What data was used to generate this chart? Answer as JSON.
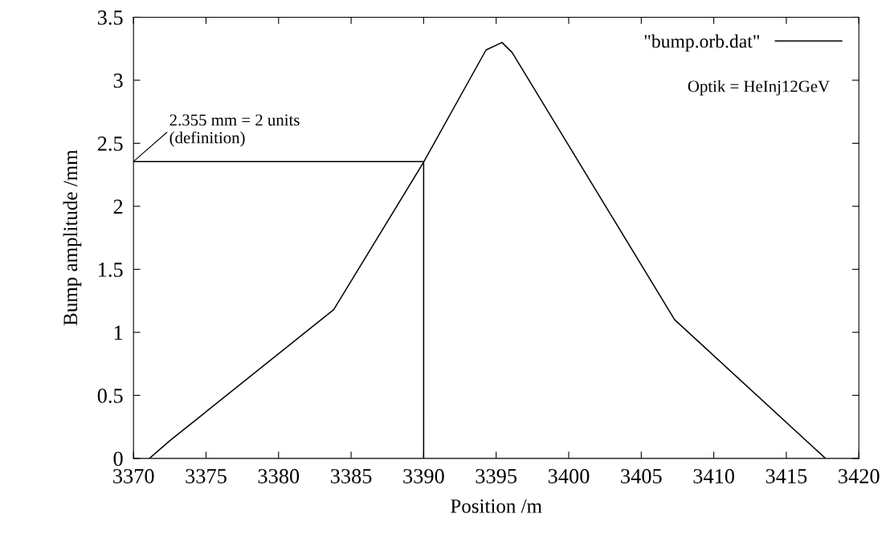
{
  "chart_data": {
    "type": "line",
    "xlabel": "Position /m",
    "ylabel": "Bump amplitude /mm",
    "xlim": [
      3370,
      3420
    ],
    "xticks": [
      3370,
      3375,
      3380,
      3385,
      3390,
      3395,
      3400,
      3405,
      3410,
      3415,
      3420
    ],
    "ylim": [
      0,
      3.5
    ],
    "yticks": [
      0,
      0.5,
      1,
      1.5,
      2,
      2.5,
      3,
      3.5
    ],
    "series": [
      {
        "name": "\"bump.orb.dat\"",
        "color": "#000000",
        "x": [
          3371.1,
          3372.5,
          3383.8,
          3390,
          3394.3,
          3395.4,
          3396.1,
          3407.3,
          3417.7
        ],
        "values": [
          0,
          0.14,
          1.18,
          2.35,
          3.24,
          3.3,
          3.22,
          1.1,
          0
        ]
      },
      {
        "color": "#000000",
        "x": [
          3370,
          3390,
          3390
        ],
        "values": [
          2.355,
          2.355,
          0
        ]
      }
    ],
    "annotations": [
      {
        "text": "2.355 mm = 2 units\n(definition)",
        "x": 3370,
        "y": 2.355
      },
      "Optik = HeInj12GeV"
    ],
    "legend": "top right",
    "grid": false,
    "marker": "none",
    "line_style": "solid"
  }
}
